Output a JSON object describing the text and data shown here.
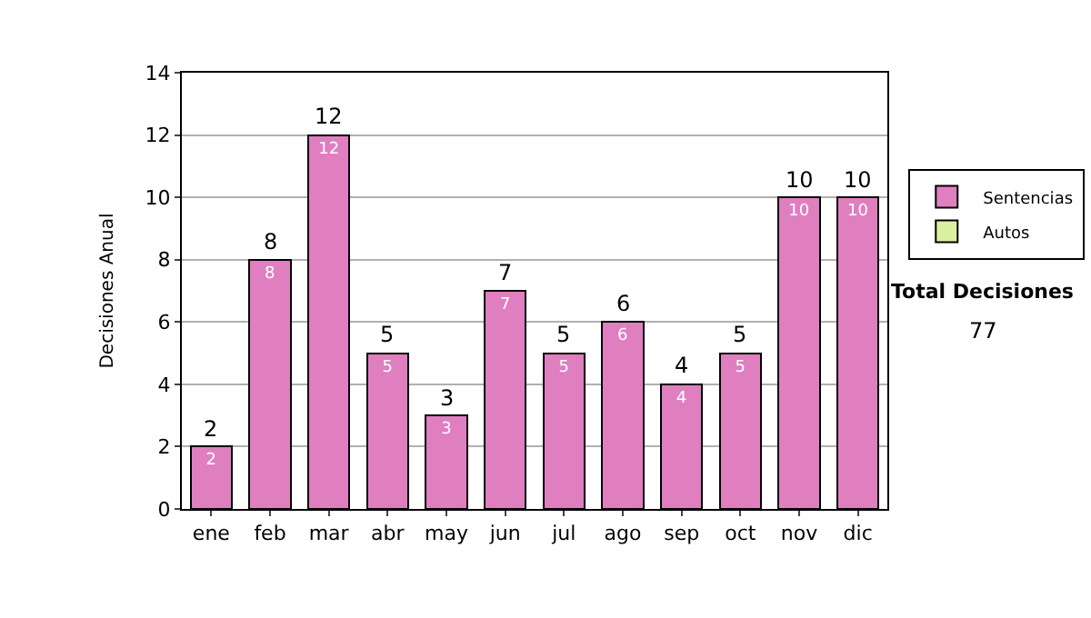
{
  "chart_data": {
    "type": "bar",
    "stacked": true,
    "ylabel": "Decisiones Anual",
    "categories": [
      "ene",
      "feb",
      "mar",
      "abr",
      "may",
      "jun",
      "jul",
      "ago",
      "sep",
      "oct",
      "nov",
      "dic"
    ],
    "series": [
      {
        "name": "Sentencias",
        "color": "#df7fc0",
        "values": [
          2,
          8,
          12,
          5,
          3,
          7,
          5,
          6,
          4,
          5,
          10,
          10
        ],
        "value_labels": [
          "2",
          "8",
          "12",
          "5",
          "3",
          "7",
          "5",
          "6",
          "4",
          "5",
          "10",
          "10"
        ]
      },
      {
        "name": "Autos",
        "color": "#d8f0a0",
        "values": [
          null,
          null,
          null,
          null,
          null,
          null,
          null,
          null,
          null,
          null,
          null,
          null
        ]
      }
    ],
    "totals": [
      "2",
      "8",
      "12",
      "5",
      "3",
      "7",
      "5",
      "6",
      "4",
      "5",
      "10",
      "10"
    ],
    "ylim": [
      0,
      14
    ],
    "yticks": [
      0,
      2,
      4,
      6,
      8,
      10,
      12,
      14
    ],
    "grid": "y",
    "legend": "right",
    "annotations": [
      "Total Decisiones",
      "77"
    ]
  }
}
